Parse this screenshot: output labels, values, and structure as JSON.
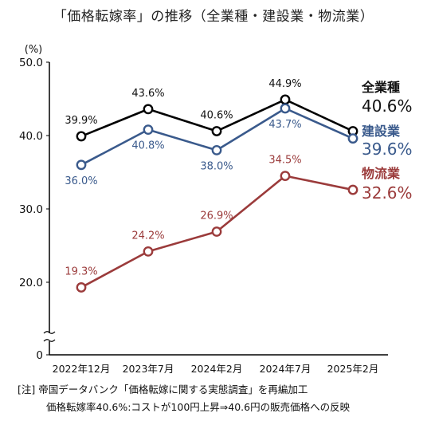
{
  "chart_data": {
    "type": "line",
    "title": "「価格転嫁率」の推移（全業種・建設業・物流業）",
    "ylabel": "(%)",
    "ylim": [
      0,
      50
    ],
    "yticks": [
      "50.0",
      "40.0",
      "30.0",
      "20.0",
      "0"
    ],
    "categories": [
      "2022年12月",
      "2023年7月",
      "2024年2月",
      "2024年7月",
      "2025年2月"
    ],
    "series": [
      {
        "name": "全業種",
        "color": "#000000",
        "values": [
          39.9,
          43.6,
          40.6,
          44.9,
          40.6
        ],
        "labels": [
          "39.9%",
          "43.6%",
          "40.6%",
          "44.9%",
          null
        ],
        "latest": "40.6%"
      },
      {
        "name": "建設業",
        "color": "#3a5a8c",
        "values": [
          36.0,
          40.8,
          38.0,
          43.7,
          39.6
        ],
        "labels": [
          "36.0%",
          "40.8%",
          "38.0%",
          "43.7%",
          null
        ],
        "latest": "39.6%"
      },
      {
        "name": "物流業",
        "color": "#9b3b3b",
        "values": [
          19.3,
          24.2,
          26.9,
          34.5,
          32.6
        ],
        "labels": [
          "19.3%",
          "24.2%",
          "26.9%",
          "34.5%",
          null
        ],
        "latest": "32.6%"
      }
    ]
  },
  "notes": {
    "line1": "[注] 帝国データバンク「価格転嫁に関する実態調査」を再編加工",
    "line2": "価格転嫁率40.6%:コストが100円上昇⇒40.6円の販売価格への反映"
  }
}
